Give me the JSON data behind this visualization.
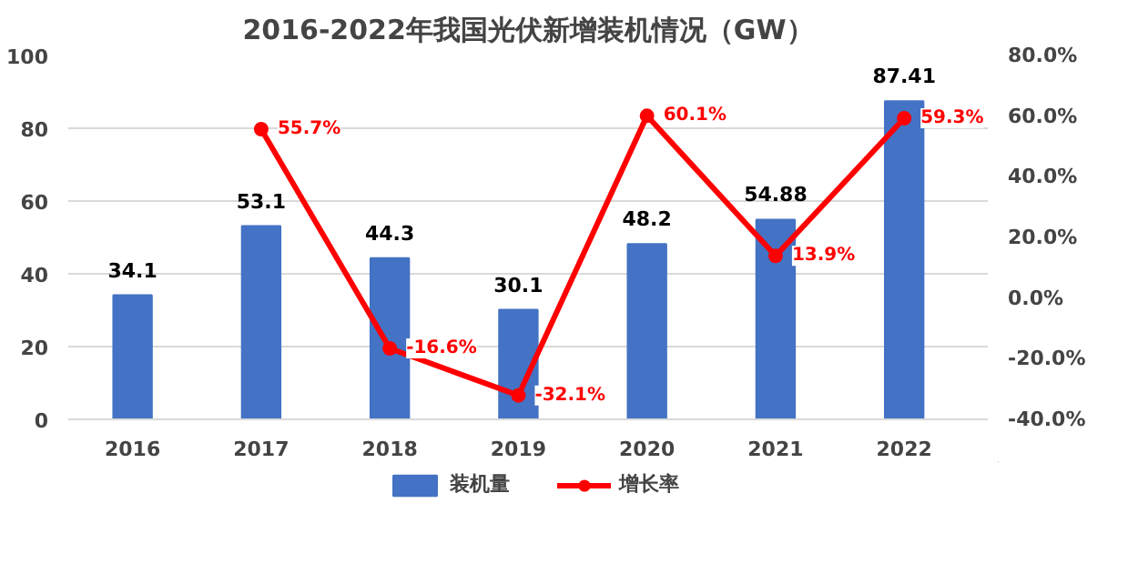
{
  "chart_data": {
    "type": "bar",
    "title": "2016-2022年我国光伏新增装机情况（GW）",
    "categories": [
      "2016",
      "2017",
      "2018",
      "2019",
      "2020",
      "2021",
      "2022"
    ],
    "series": [
      {
        "name": "装机量",
        "color": "#4472c4",
        "values": [
          34.1,
          53.1,
          44.3,
          30.1,
          48.2,
          54.88,
          87.41
        ]
      },
      {
        "name": "增长率",
        "type": "line",
        "axis": "y2",
        "color": "#ff0000",
        "marker": "circle",
        "values": [
          null,
          55.7,
          -16.6,
          -32.1,
          60.1,
          13.9,
          59.3
        ],
        "value_labels": [
          null,
          "55.7%",
          "-16.6%",
          "-32.1%",
          "60.1%",
          "13.9%",
          "59.3%"
        ]
      }
    ],
    "data_labels": true,
    "ylim": [
      0,
      100
    ],
    "yticks": [
      0,
      20,
      40,
      60,
      80,
      100
    ],
    "y2lim": [
      -40,
      80
    ],
    "y2ticks": [
      {
        "value": -40,
        "label": "-40.0%"
      },
      {
        "value": -20,
        "label": "-20.0%"
      },
      {
        "value": 0,
        "label": "0.0%"
      },
      {
        "value": 20,
        "label": "20.0%"
      },
      {
        "value": 40,
        "label": "40.0%"
      },
      {
        "value": 60,
        "label": "60.0%"
      },
      {
        "value": 80,
        "label": "80.0%"
      }
    ],
    "grid": "y",
    "legend": "bottom"
  }
}
